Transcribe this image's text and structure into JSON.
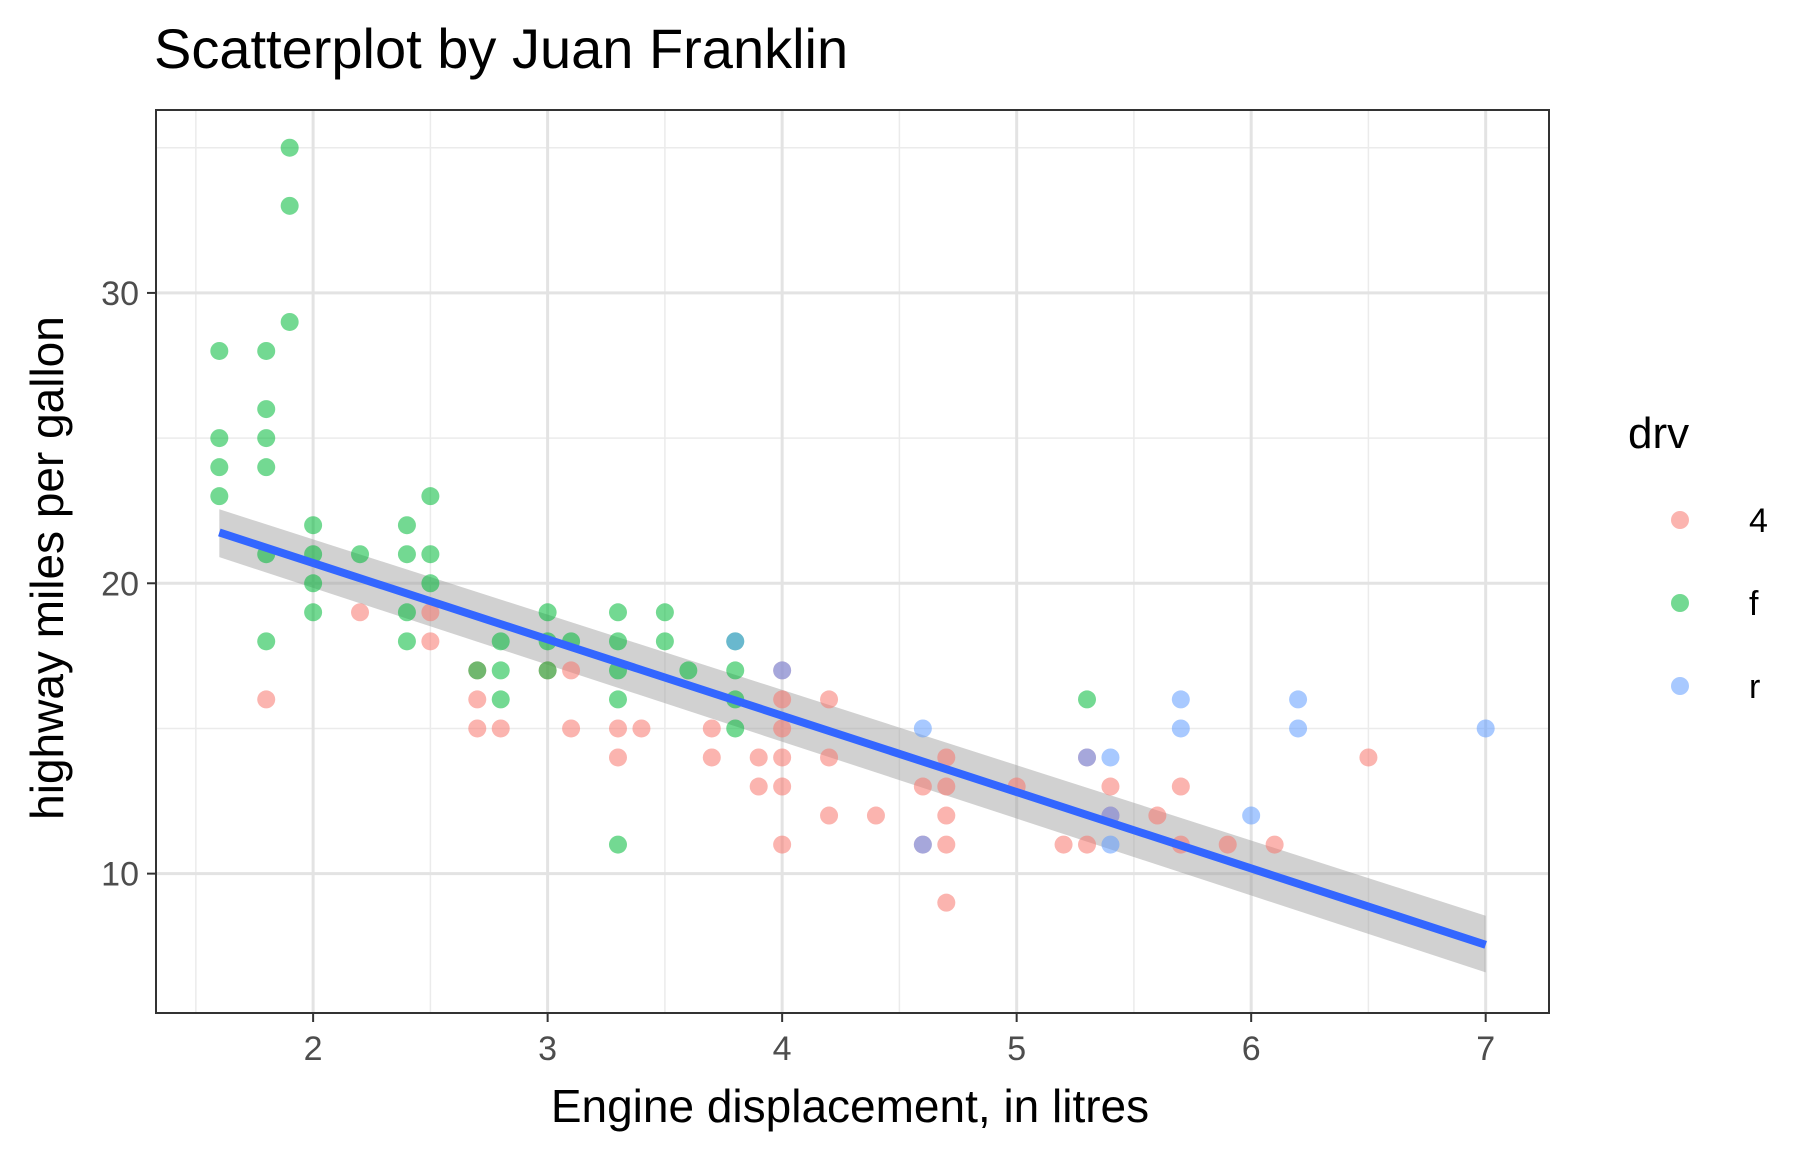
{
  "chart_data": {
    "type": "scatter",
    "title": "Scatterplot by Juan Franklin",
    "xlabel": "Engine displacement, in litres",
    "ylabel": "highway miles per gallon",
    "xlim": [
      1.33,
      7.27
    ],
    "ylim": [
      5.2,
      36.3
    ],
    "xticks": [
      2,
      3,
      4,
      5,
      6,
      7
    ],
    "xtick_labels": [
      "2",
      "3",
      "4",
      "5",
      "6",
      "7"
    ],
    "yticks": [
      10,
      20,
      30
    ],
    "ytick_labels": [
      "10",
      "20",
      "30"
    ],
    "grid": true,
    "legend": {
      "title": "drv",
      "position": "right",
      "entries": [
        {
          "label": "4",
          "color": "#F8766D"
        },
        {
          "label": "f",
          "color": "#00BA38"
        },
        {
          "label": "r",
          "color": "#619CFF"
        }
      ]
    },
    "series": [
      {
        "name": "4",
        "color": "#F8766D",
        "points": [
          [
            1.8,
            16
          ],
          [
            2.2,
            19
          ],
          [
            2.5,
            19
          ],
          [
            2.5,
            18
          ],
          [
            2.7,
            17
          ],
          [
            2.7,
            16
          ],
          [
            2.7,
            15
          ],
          [
            2.8,
            15
          ],
          [
            3.0,
            17
          ],
          [
            3.1,
            17
          ],
          [
            3.1,
            15
          ],
          [
            3.3,
            15
          ],
          [
            3.3,
            14
          ],
          [
            3.4,
            15
          ],
          [
            3.7,
            15
          ],
          [
            3.7,
            14
          ],
          [
            3.9,
            14
          ],
          [
            3.9,
            13
          ],
          [
            4.0,
            17
          ],
          [
            4.0,
            16
          ],
          [
            4.0,
            15
          ],
          [
            4.0,
            14
          ],
          [
            4.0,
            13
          ],
          [
            4.0,
            11
          ],
          [
            4.2,
            16
          ],
          [
            4.2,
            14
          ],
          [
            4.2,
            12
          ],
          [
            4.4,
            12
          ],
          [
            4.6,
            13
          ],
          [
            4.6,
            11
          ],
          [
            4.7,
            14
          ],
          [
            4.7,
            13
          ],
          [
            4.7,
            12
          ],
          [
            4.7,
            11
          ],
          [
            4.7,
            9
          ],
          [
            5.0,
            13
          ],
          [
            5.2,
            11
          ],
          [
            5.3,
            14
          ],
          [
            5.3,
            11
          ],
          [
            5.4,
            13
          ],
          [
            5.4,
            12
          ],
          [
            5.6,
            12
          ],
          [
            5.7,
            13
          ],
          [
            5.7,
            11
          ],
          [
            5.9,
            11
          ],
          [
            6.1,
            11
          ],
          [
            6.5,
            14
          ]
        ]
      },
      {
        "name": "f",
        "color": "#00BA38",
        "points": [
          [
            1.6,
            28
          ],
          [
            1.6,
            25
          ],
          [
            1.6,
            24
          ],
          [
            1.6,
            23
          ],
          [
            1.8,
            28
          ],
          [
            1.8,
            26
          ],
          [
            1.8,
            25
          ],
          [
            1.8,
            24
          ],
          [
            1.8,
            21
          ],
          [
            1.8,
            18
          ],
          [
            1.9,
            35
          ],
          [
            1.9,
            33
          ],
          [
            1.9,
            29
          ],
          [
            2.0,
            22
          ],
          [
            2.0,
            21
          ],
          [
            2.0,
            20
          ],
          [
            2.0,
            19
          ],
          [
            2.2,
            21
          ],
          [
            2.4,
            22
          ],
          [
            2.4,
            21
          ],
          [
            2.4,
            19
          ],
          [
            2.4,
            18
          ],
          [
            2.5,
            23
          ],
          [
            2.5,
            21
          ],
          [
            2.5,
            20
          ],
          [
            2.7,
            17
          ],
          [
            2.8,
            18
          ],
          [
            2.8,
            17
          ],
          [
            2.8,
            16
          ],
          [
            3.0,
            19
          ],
          [
            3.0,
            18
          ],
          [
            3.0,
            17
          ],
          [
            3.1,
            18
          ],
          [
            3.3,
            19
          ],
          [
            3.3,
            18
          ],
          [
            3.3,
            17
          ],
          [
            3.3,
            16
          ],
          [
            3.3,
            11
          ],
          [
            3.5,
            19
          ],
          [
            3.5,
            18
          ],
          [
            3.6,
            17
          ],
          [
            3.8,
            18
          ],
          [
            3.8,
            17
          ],
          [
            3.8,
            16
          ],
          [
            3.8,
            15
          ],
          [
            5.3,
            16
          ]
        ]
      },
      {
        "name": "r",
        "color": "#619CFF",
        "points": [
          [
            3.8,
            18
          ],
          [
            4.0,
            17
          ],
          [
            4.6,
            15
          ],
          [
            4.6,
            11
          ],
          [
            5.3,
            14
          ],
          [
            5.4,
            14
          ],
          [
            5.4,
            12
          ],
          [
            5.4,
            11
          ],
          [
            5.7,
            16
          ],
          [
            5.7,
            15
          ],
          [
            6.0,
            12
          ],
          [
            6.2,
            16
          ],
          [
            6.2,
            15
          ],
          [
            7.0,
            15
          ]
        ]
      }
    ],
    "smooth": {
      "method": "lm",
      "color": "#3366FF",
      "ribbon_color": "#999999",
      "x": [
        1.6,
        7.0
      ],
      "y": [
        21.75,
        7.55
      ],
      "ribbon_lower": [
        20.9,
        6.6
      ],
      "ribbon_upper": [
        22.55,
        8.55
      ]
    }
  }
}
